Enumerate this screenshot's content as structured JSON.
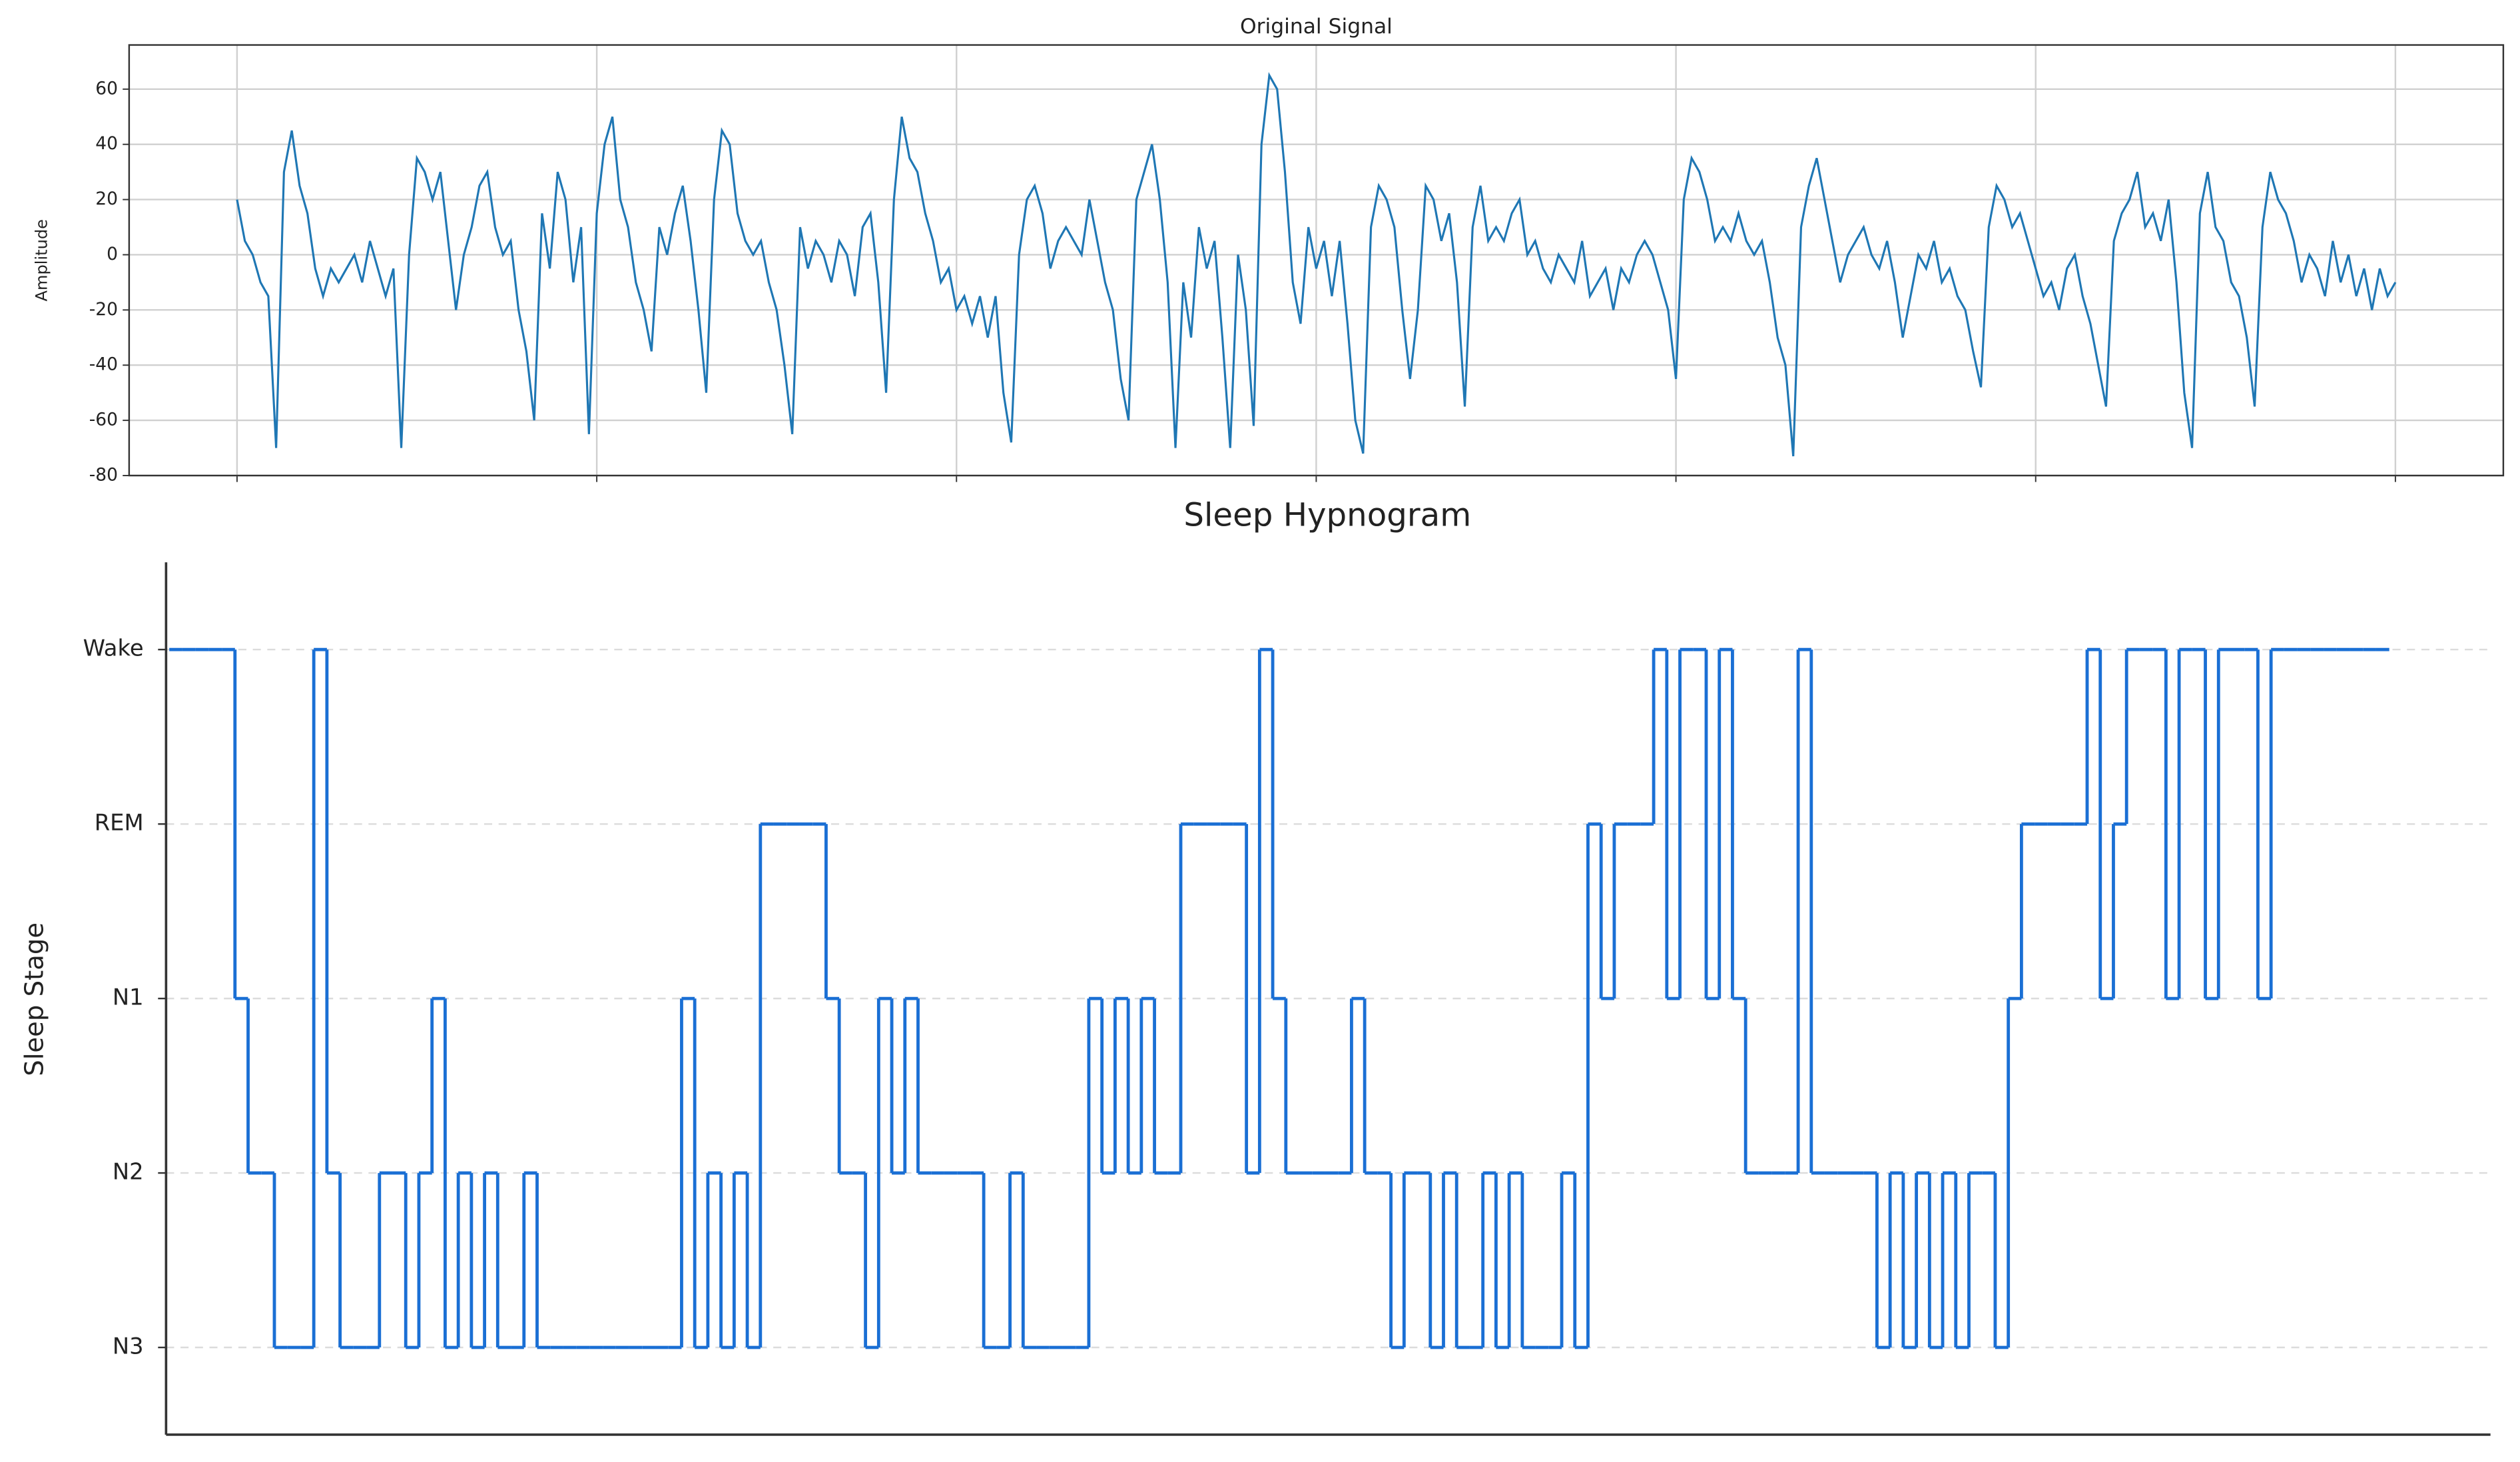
{
  "chart_data": [
    {
      "type": "line",
      "title": "Original Signal",
      "y_label": "Amplitude",
      "color": "#1f77b4",
      "grid": true,
      "ylim": [
        -80,
        76
      ],
      "yticks": [
        -80,
        -60,
        -40,
        -20,
        0,
        20,
        40,
        60
      ],
      "xlim": [
        -0.3,
        6.3
      ],
      "xticks": [
        0,
        1,
        2,
        3,
        4,
        5,
        6
      ],
      "values": [
        20,
        5,
        0,
        -10,
        -15,
        -70,
        30,
        45,
        25,
        15,
        -5,
        -15,
        -5,
        -10,
        -5,
        0,
        -10,
        5,
        -5,
        -15,
        -5,
        -70,
        0,
        35,
        30,
        20,
        30,
        5,
        -20,
        0,
        10,
        25,
        30,
        10,
        0,
        5,
        -20,
        -35,
        -60,
        15,
        -5,
        30,
        20,
        -10,
        10,
        -65,
        15,
        40,
        50,
        20,
        10,
        -10,
        -20,
        -35,
        10,
        0,
        15,
        25,
        5,
        -20,
        -50,
        20,
        45,
        40,
        15,
        5,
        0,
        5,
        -10,
        -20,
        -40,
        -65,
        10,
        -5,
        5,
        0,
        -10,
        5,
        0,
        -15,
        10,
        15,
        -10,
        -50,
        20,
        50,
        35,
        30,
        15,
        5,
        -10,
        -5,
        -20,
        -15,
        -25,
        -15,
        -30,
        -15,
        -50,
        -68,
        0,
        20,
        25,
        15,
        -5,
        5,
        10,
        5,
        0,
        20,
        5,
        -10,
        -20,
        -45,
        -60,
        20,
        30,
        40,
        20,
        -10,
        -70,
        -10,
        -30,
        10,
        -5,
        5,
        -30,
        -70,
        0,
        -20,
        -62,
        40,
        65,
        60,
        30,
        -10,
        -25,
        10,
        -5,
        5,
        -15,
        5,
        -25,
        -60,
        -72,
        10,
        25,
        20,
        10,
        -20,
        -45,
        -20,
        25,
        20,
        5,
        15,
        -10,
        -55,
        10,
        25,
        5,
        10,
        5,
        15,
        20,
        0,
        5,
        -5,
        -10,
        0,
        -5,
        -10,
        5,
        -15,
        -10,
        -5,
        -20,
        -5,
        -10,
        0,
        5,
        0,
        -10,
        -20,
        -45,
        20,
        35,
        30,
        20,
        5,
        10,
        5,
        15,
        5,
        0,
        5,
        -10,
        -30,
        -40,
        -73,
        10,
        25,
        35,
        20,
        5,
        -10,
        0,
        5,
        10,
        0,
        -5,
        5,
        -10,
        -30,
        -15,
        0,
        -5,
        5,
        -10,
        -5,
        -15,
        -20,
        -35,
        -48,
        10,
        25,
        20,
        10,
        15,
        5,
        -5,
        -15,
        -10,
        -20,
        -5,
        0,
        -15,
        -25,
        -40,
        -55,
        5,
        15,
        20,
        30,
        10,
        15,
        5,
        20,
        -10,
        -50,
        -70,
        15,
        30,
        10,
        5,
        -10,
        -15,
        -30,
        -55,
        10,
        30,
        20,
        15,
        5,
        -10,
        0,
        -5,
        -15,
        5,
        -10,
        0,
        -15,
        -5,
        -20,
        -5,
        -15,
        -10
      ]
    },
    {
      "type": "step",
      "title": "Sleep Hypnogram",
      "y_label": "Sleep Stage",
      "color": "#1a6fd4",
      "grid": true,
      "ylim": [
        -0.5,
        4.5
      ],
      "yticks": [
        {
          "value": 0,
          "label": "N3"
        },
        {
          "value": 1,
          "label": "N2"
        },
        {
          "value": 2,
          "label": "N1"
        },
        {
          "value": 3,
          "label": "REM"
        },
        {
          "value": 4,
          "label": "Wake"
        }
      ],
      "values": [
        4,
        4,
        4,
        4,
        4,
        2,
        1,
        1,
        0,
        0,
        0,
        4,
        1,
        0,
        0,
        0,
        1,
        1,
        0,
        1,
        2,
        0,
        1,
        0,
        1,
        0,
        0,
        1,
        0,
        0,
        0,
        0,
        0,
        0,
        0,
        0,
        0,
        0,
        0,
        2,
        0,
        1,
        0,
        1,
        0,
        3,
        3,
        3,
        3,
        3,
        2,
        1,
        1,
        0,
        2,
        1,
        2,
        1,
        1,
        1,
        1,
        1,
        0,
        0,
        1,
        0,
        0,
        0,
        0,
        0,
        2,
        1,
        2,
        1,
        2,
        1,
        1,
        3,
        3,
        3,
        3,
        3,
        1,
        4,
        2,
        1,
        1,
        1,
        1,
        1,
        2,
        1,
        1,
        0,
        1,
        1,
        0,
        1,
        0,
        0,
        1,
        0,
        1,
        0,
        0,
        0,
        1,
        0,
        3,
        2,
        3,
        3,
        3,
        4,
        2,
        4,
        4,
        2,
        4,
        2,
        1,
        1,
        1,
        1,
        4,
        1,
        1,
        1,
        1,
        1,
        0,
        1,
        0,
        1,
        0,
        1,
        0,
        1,
        1,
        0,
        2,
        3,
        3,
        3,
        3,
        3,
        4,
        2,
        3,
        4,
        4,
        4,
        2,
        4,
        4,
        2,
        4,
        4,
        4,
        2,
        4,
        4,
        4,
        4,
        4,
        4,
        4,
        4,
        4
      ]
    }
  ]
}
